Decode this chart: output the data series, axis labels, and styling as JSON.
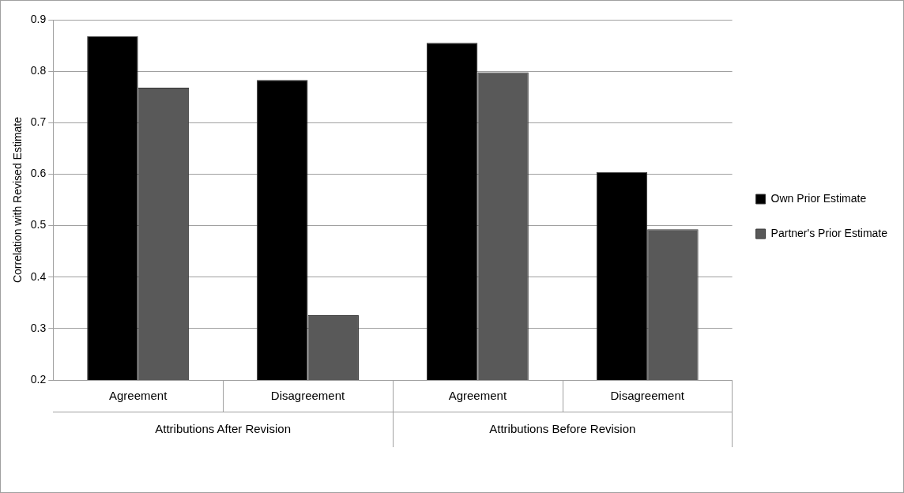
{
  "chart_data": {
    "type": "bar",
    "ylabel": "Correlation with Revised Estimate",
    "categories": [
      "Agreement",
      "Disagreement",
      "Agreement",
      "Disagreement"
    ],
    "series": [
      {
        "name": "Own Prior Estimate",
        "color": "#000000",
        "values": [
          0.868,
          0.783,
          0.855,
          0.604
        ]
      },
      {
        "name": "Partner's Prior Estimate",
        "color": "#595959",
        "values": [
          0.768,
          0.326,
          0.798,
          0.493
        ]
      }
    ],
    "ylim": [
      0.2,
      0.9
    ],
    "yticks": [
      0.2,
      0.3,
      0.4,
      0.5,
      0.6,
      0.7,
      0.8,
      0.9
    ],
    "grid": "y",
    "legend": "right",
    "annotations": [
      "Attributions After Revision",
      "Attributions Before Revision"
    ]
  }
}
